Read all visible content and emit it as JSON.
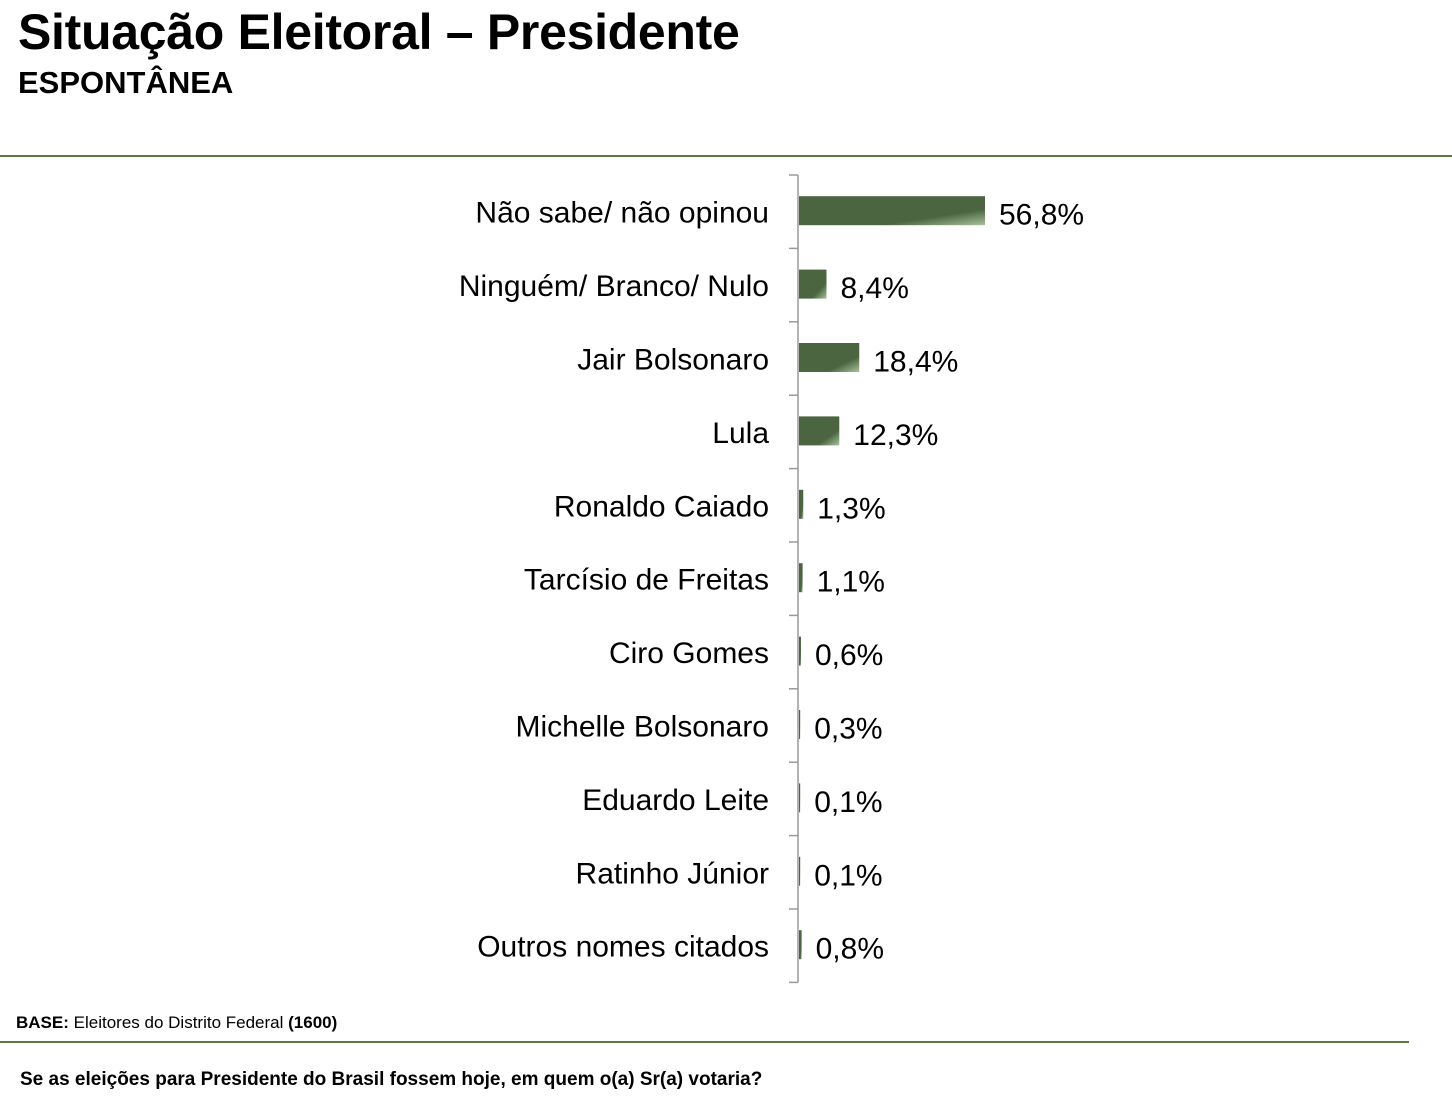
{
  "header": {
    "title": "Situação Eleitoral – Presidente",
    "subtitle": "ESPONTÂNEA"
  },
  "footer": {
    "base_label": "BASE:",
    "base_text": "Eleitores do Distrito Federal",
    "base_count": "(1600)",
    "question": "Se as eleições para Presidente do Brasil fossem hoje, em quem o(a) Sr(a) votaria?"
  },
  "colors": {
    "bar_dark": "#4a6540",
    "bar_light": "#a9c29d",
    "rule": "#5a7a45",
    "axis": "#9a9a9a"
  },
  "chart_data": {
    "type": "bar",
    "orientation": "horizontal",
    "title": "Situação Eleitoral – Presidente",
    "subtitle": "ESPONTÂNEA",
    "xlabel": "",
    "ylabel": "",
    "unit": "%",
    "xlim": [
      0,
      56.8
    ],
    "grid": false,
    "categories": [
      "Não sabe/ não opinou",
      "Ninguém/ Branco/ Nulo",
      "Jair Bolsonaro",
      "Lula",
      "Ronaldo Caiado",
      "Tarcísio de Freitas",
      "Ciro Gomes",
      "Michelle Bolsonaro",
      "Eduardo Leite",
      "Ratinho Júnior",
      "Outros nomes citados"
    ],
    "values": [
      56.8,
      8.4,
      18.4,
      12.3,
      1.3,
      1.1,
      0.6,
      0.3,
      0.1,
      0.1,
      0.8
    ],
    "value_labels": [
      "56,8%",
      "8,4%",
      "18,4%",
      "12,3%",
      "1,3%",
      "1,1%",
      "0,6%",
      "0,3%",
      "0,1%",
      "0,1%",
      "0,8%"
    ]
  }
}
